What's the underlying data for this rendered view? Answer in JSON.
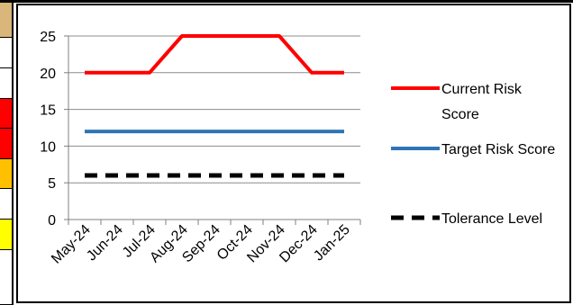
{
  "background_strip": {
    "cells": [
      {
        "color": "#d9b67a"
      },
      {
        "color": "#ffffff"
      },
      {
        "color": "#ffffff"
      },
      {
        "color": "#ff0000"
      },
      {
        "color": "#ff0000"
      },
      {
        "color": "#ffc000"
      },
      {
        "color": "#ffffff"
      },
      {
        "color": "#ffff00"
      },
      {
        "color": "#ffffff"
      }
    ]
  },
  "chart_data": {
    "type": "line",
    "categories": [
      "May-24",
      "Jun-24",
      "Jul-24",
      "Aug-24",
      "Sep-24",
      "Oct-24",
      "Nov-24",
      "Dec-24",
      "Jan-25"
    ],
    "ylim": [
      0,
      25
    ],
    "yticks": [
      0,
      5,
      10,
      15,
      20,
      25
    ],
    "grid": true,
    "legend_position": "right",
    "title": "",
    "xlabel": "",
    "ylabel": "",
    "series": [
      {
        "name": "Current Risk Score",
        "values": [
          20,
          20,
          20,
          25,
          25,
          25,
          25,
          20,
          20
        ],
        "color": "#ff0000",
        "dash": "solid"
      },
      {
        "name": "Target Risk Score",
        "values": [
          12,
          12,
          12,
          12,
          12,
          12,
          12,
          12,
          12
        ],
        "color": "#2e75b6",
        "dash": "solid"
      },
      {
        "name": "Tolerance Level",
        "values": [
          6,
          6,
          6,
          6,
          6,
          6,
          6,
          6,
          6
        ],
        "color": "#000000",
        "dash": "dashed"
      }
    ]
  }
}
